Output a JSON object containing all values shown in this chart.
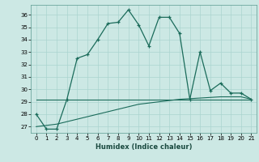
{
  "xlabel": "Humidex (Indice chaleur)",
  "xlim": [
    -0.5,
    21.5
  ],
  "ylim": [
    26.5,
    36.8
  ],
  "yticks": [
    27,
    28,
    29,
    30,
    31,
    32,
    33,
    34,
    35,
    36
  ],
  "xticks": [
    0,
    1,
    2,
    3,
    4,
    5,
    6,
    7,
    8,
    9,
    10,
    11,
    12,
    13,
    14,
    15,
    16,
    17,
    18,
    19,
    20,
    21
  ],
  "line_color": "#1a6b5a",
  "bg_color": "#cce8e4",
  "grid_color": "#aad4cf",
  "series1_x": [
    0,
    1,
    2,
    3,
    4,
    5,
    6,
    7,
    8,
    9,
    10,
    11,
    12,
    13,
    14,
    15,
    16,
    17,
    18,
    19,
    20,
    21
  ],
  "series1_y": [
    28.0,
    26.8,
    26.8,
    29.2,
    32.5,
    32.8,
    34.0,
    35.3,
    35.4,
    36.4,
    35.2,
    33.5,
    35.8,
    35.8,
    34.5,
    29.2,
    33.0,
    29.9,
    30.5,
    29.7,
    29.7,
    29.2
  ],
  "series2_x": [
    0,
    3,
    21
  ],
  "series2_y": [
    29.2,
    29.2,
    29.2
  ],
  "series3_x": [
    0,
    1,
    2,
    3,
    4,
    5,
    6,
    7,
    8,
    9,
    10,
    11,
    12,
    13,
    14,
    15,
    16,
    17,
    18,
    19,
    20,
    21
  ],
  "series3_y": [
    27.0,
    27.1,
    27.2,
    27.4,
    27.6,
    27.8,
    28.0,
    28.2,
    28.4,
    28.6,
    28.8,
    28.9,
    29.0,
    29.1,
    29.2,
    29.25,
    29.3,
    29.35,
    29.4,
    29.4,
    29.4,
    29.2
  ]
}
